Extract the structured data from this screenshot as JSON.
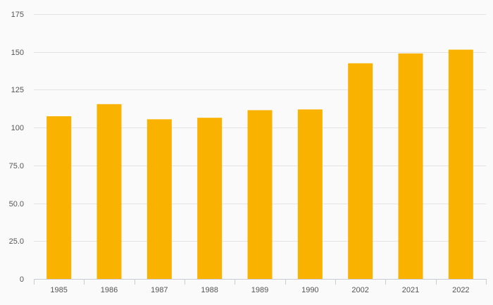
{
  "chart_data": {
    "type": "bar",
    "categories": [
      "1985",
      "1986",
      "1987",
      "1988",
      "1989",
      "1990",
      "2002",
      "2021",
      "2022"
    ],
    "values": [
      107.5,
      115.5,
      105.5,
      106.5,
      111.5,
      112,
      142.5,
      149,
      151.5
    ],
    "title": "",
    "xlabel": "",
    "ylabel": "",
    "ylim": [
      0,
      175
    ],
    "y_ticks": [
      0,
      25,
      50,
      75,
      100,
      125,
      150,
      175
    ],
    "y_tick_labels": [
      "0",
      "25.0",
      "50.0",
      "75.0",
      "100",
      "125",
      "150",
      "175"
    ],
    "grid": true,
    "legend": "none",
    "bar_color": "#f9b200"
  }
}
